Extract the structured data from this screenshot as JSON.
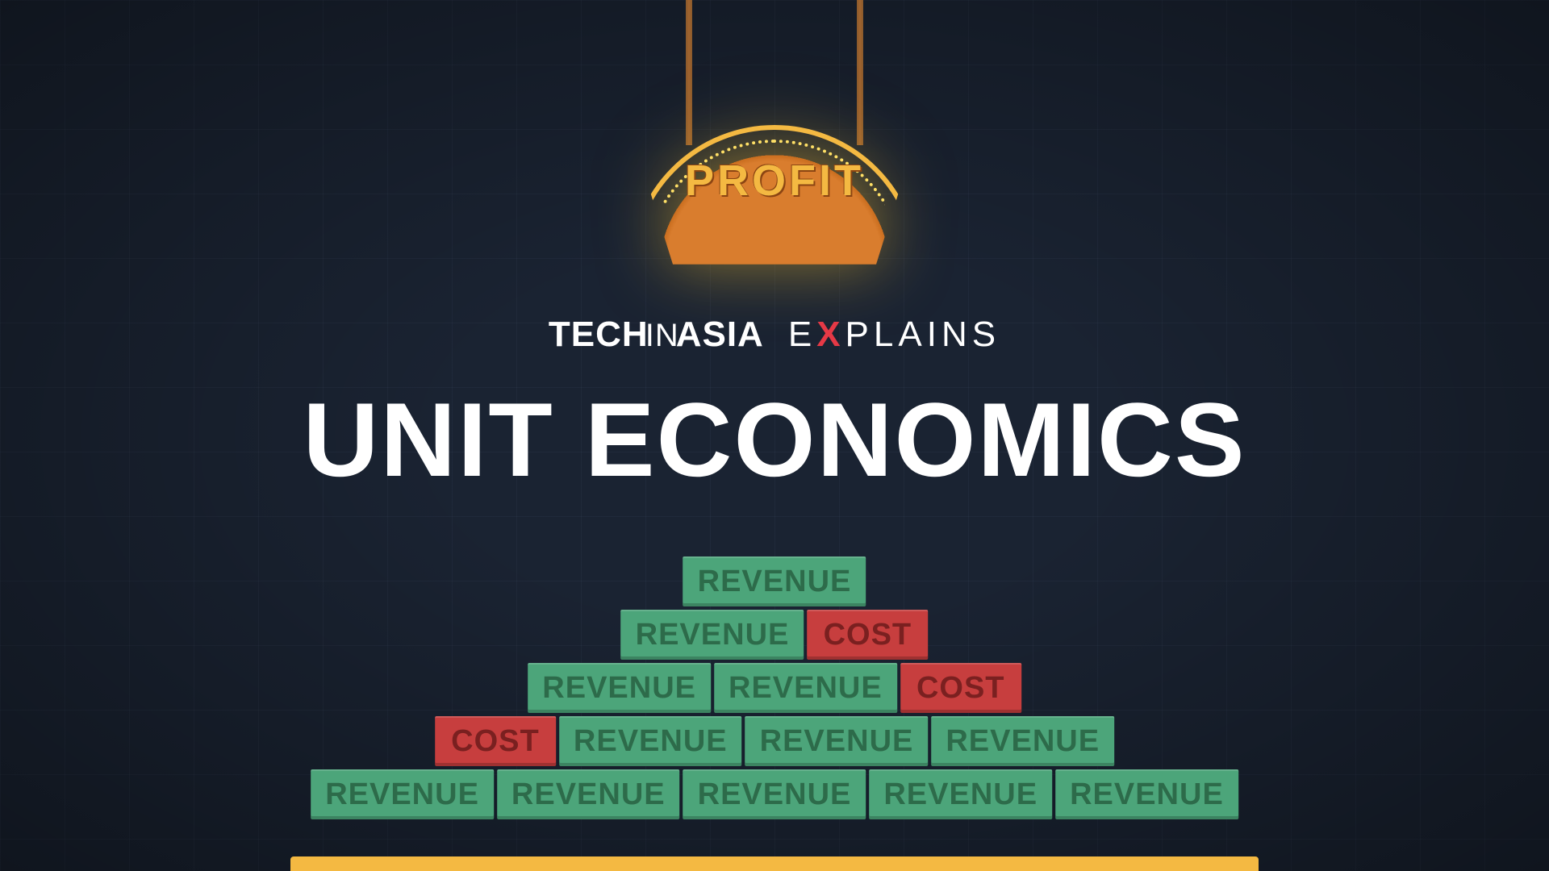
{
  "colors": {
    "background": "#1a2332",
    "grid_line": "rgba(100,120,150,0.08)",
    "revenue_bg": "#4ca57a",
    "revenue_text": "#2d6b4a",
    "cost_bg": "#c73e3e",
    "cost_text": "#7a2020",
    "profit_sign_bg": "#d97d2e",
    "profit_sign_border": "#f4b942",
    "profit_text": "#f4b942",
    "platform": "#f4b942",
    "title_text": "#ffffff",
    "brand_x": "#e63946"
  },
  "typography": {
    "title_fontsize": 130,
    "brand_fontsize": 44,
    "profit_fontsize": 54,
    "block_fontsize": 38
  },
  "profit_sign": {
    "label": "PROFIT"
  },
  "brand": {
    "tech": "TECH",
    "in": "IN",
    "asia": "ASIA",
    "explains_pre": "E",
    "explains_x": "X",
    "explains_post": "PLAINS"
  },
  "title": "UNIT ECONOMICS",
  "pyramid": {
    "block_height": 62,
    "row_gap": 4,
    "rows": [
      [
        {
          "type": "revenue",
          "label": "REVENUE"
        }
      ],
      [
        {
          "type": "revenue",
          "label": "REVENUE"
        },
        {
          "type": "cost",
          "label": "COST"
        }
      ],
      [
        {
          "type": "revenue",
          "label": "REVENUE"
        },
        {
          "type": "revenue",
          "label": "REVENUE"
        },
        {
          "type": "cost",
          "label": "COST"
        }
      ],
      [
        {
          "type": "cost",
          "label": "COST"
        },
        {
          "type": "revenue",
          "label": "REVENUE"
        },
        {
          "type": "revenue",
          "label": "REVENUE"
        },
        {
          "type": "revenue",
          "label": "REVENUE"
        }
      ],
      [
        {
          "type": "revenue",
          "label": "REVENUE"
        },
        {
          "type": "revenue",
          "label": "REVENUE"
        },
        {
          "type": "revenue",
          "label": "REVENUE"
        },
        {
          "type": "revenue",
          "label": "REVENUE"
        },
        {
          "type": "revenue",
          "label": "REVENUE"
        }
      ]
    ]
  }
}
